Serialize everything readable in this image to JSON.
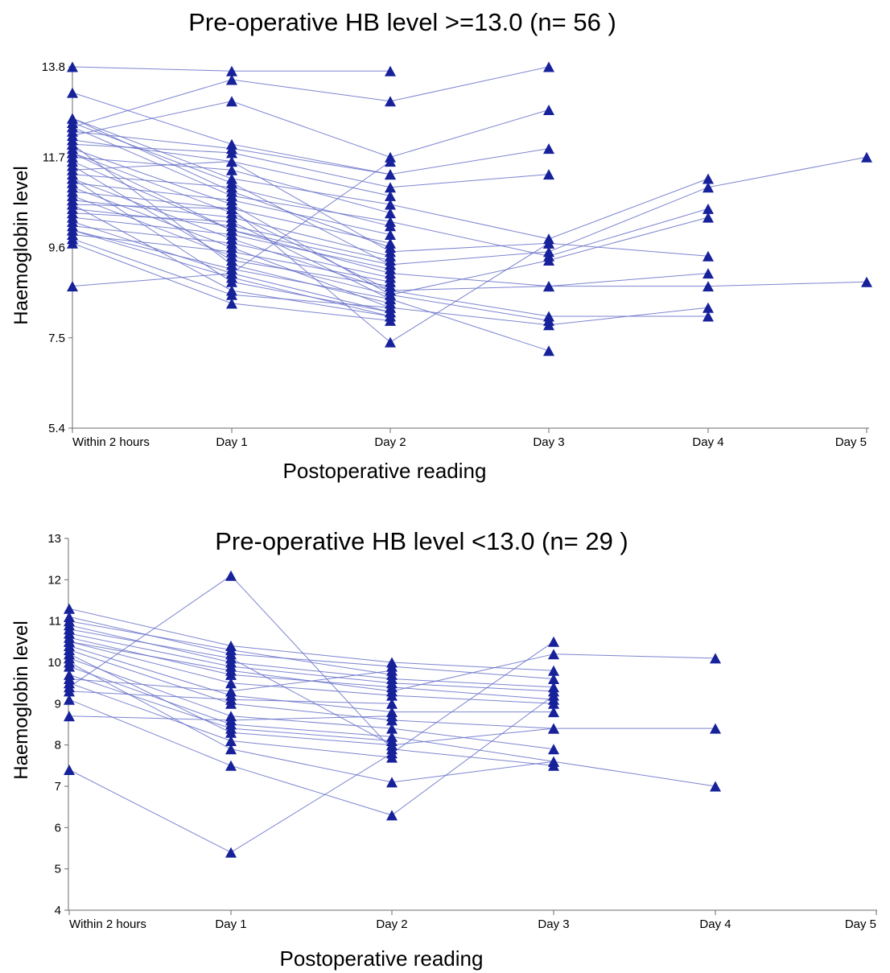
{
  "chart_data": [
    {
      "type": "line",
      "title": "Pre-operative HB level >=13.0 (n= 56 )",
      "xlabel": "Postoperative reading",
      "ylabel": "Haemoglobin level",
      "categories": [
        "Within 2 hours",
        "Day 1",
        "Day 2",
        "Day 3",
        "Day 4",
        "Day 5"
      ],
      "yticks": [
        "5.4",
        "7.5",
        "9.6",
        "11.7",
        "13.8"
      ],
      "ylim": [
        5.4,
        13.8
      ],
      "grid": false,
      "marker": "triangle",
      "colors": {
        "line": "#6670c8",
        "marker": "#16219a"
      },
      "series": [
        {
          "values": [
            13.8,
            13.7,
            13.7,
            null,
            null,
            null
          ]
        },
        {
          "values": [
            12.4,
            13.5,
            13.0,
            13.8,
            null,
            null
          ]
        },
        {
          "values": [
            12.2,
            13.0,
            11.7,
            12.8,
            null,
            null
          ]
        },
        {
          "values": [
            13.2,
            12.0,
            11.3,
            11.9,
            null,
            null
          ]
        },
        {
          "values": [
            12.0,
            11.8,
            11.0,
            11.3,
            null,
            null
          ]
        },
        {
          "values": [
            12.6,
            11.2,
            10.6,
            9.8,
            11.2,
            null
          ]
        },
        {
          "values": [
            12.5,
            11.1,
            9.2,
            9.5,
            11.0,
            11.7
          ]
        },
        {
          "values": [
            12.4,
            10.8,
            10.2,
            9.4,
            10.5,
            null
          ]
        },
        {
          "values": [
            11.9,
            10.6,
            8.5,
            9.3,
            10.3,
            null
          ]
        },
        {
          "values": [
            11.8,
            10.4,
            8.6,
            8.7,
            9.0,
            null
          ]
        },
        {
          "values": [
            11.6,
            10.0,
            9.0,
            8.7,
            8.7,
            8.8
          ]
        },
        {
          "values": [
            11.4,
            11.6,
            9.5,
            9.7,
            9.4,
            null
          ]
        },
        {
          "values": [
            11.2,
            9.8,
            8.6,
            8.0,
            8.0,
            null
          ]
        },
        {
          "values": [
            11.0,
            9.6,
            8.2,
            7.8,
            8.2,
            null
          ]
        },
        {
          "values": [
            10.8,
            9.4,
            8.5,
            7.9,
            null,
            null
          ]
        },
        {
          "values": [
            10.6,
            10.5,
            7.4,
            9.7,
            null,
            null
          ]
        },
        {
          "values": [
            10.4,
            10.2,
            8.4,
            7.2,
            null,
            null
          ]
        },
        {
          "values": [
            10.2,
            9.0,
            8.1,
            null,
            null,
            null
          ]
        },
        {
          "values": [
            10.0,
            8.9,
            8.0,
            null,
            null,
            null
          ]
        },
        {
          "values": [
            9.8,
            8.5,
            8.2,
            null,
            null,
            null
          ]
        },
        {
          "values": [
            9.7,
            8.3,
            7.9,
            null,
            null,
            null
          ]
        },
        {
          "values": [
            8.7,
            9.0,
            11.6,
            null,
            null,
            null
          ]
        },
        {
          "values": [
            12.3,
            11.9,
            11.3,
            null,
            null,
            null
          ]
        },
        {
          "values": [
            12.1,
            11.6,
            10.8,
            null,
            null,
            null
          ]
        },
        {
          "values": [
            11.7,
            11.4,
            10.4,
            null,
            null,
            null
          ]
        },
        {
          "values": [
            11.3,
            11.0,
            10.1,
            null,
            null,
            null
          ]
        },
        {
          "values": [
            11.1,
            10.7,
            9.9,
            null,
            null,
            null
          ]
        },
        {
          "values": [
            10.9,
            10.5,
            9.7,
            null,
            null,
            null
          ]
        },
        {
          "values": [
            10.7,
            10.3,
            9.4,
            null,
            null,
            null
          ]
        },
        {
          "values": [
            10.5,
            10.1,
            9.3,
            null,
            null,
            null
          ]
        },
        {
          "values": [
            10.3,
            9.9,
            9.1,
            null,
            null,
            null
          ]
        },
        {
          "values": [
            10.1,
            9.7,
            8.9,
            null,
            null,
            null
          ]
        },
        {
          "values": [
            9.9,
            9.5,
            8.8,
            null,
            null,
            null
          ]
        },
        {
          "values": [
            11.5,
            9.3,
            8.7,
            null,
            null,
            null
          ]
        },
        {
          "values": [
            12.0,
            9.2,
            8.3,
            null,
            null,
            null
          ]
        },
        {
          "values": [
            11.2,
            8.8,
            8.1,
            null,
            null,
            null
          ]
        },
        {
          "values": [
            10.6,
            8.6,
            8.0,
            null,
            null,
            null
          ]
        },
        {
          "values": [
            12.6,
            10.9,
            9.6,
            null,
            null,
            null
          ]
        },
        {
          "values": [
            10.0,
            9.1,
            8.4,
            null,
            null,
            null
          ]
        },
        {
          "values": [
            11.8,
            10.0,
            9.2,
            null,
            null,
            null
          ]
        }
      ]
    },
    {
      "type": "line",
      "title": "Pre-operative HB level <13.0 (n= 29 )",
      "xlabel": "Postoperative reading",
      "ylabel": "Haemoglobin level",
      "categories": [
        "Within 2 hours",
        "Day 1",
        "Day 2",
        "Day 3",
        "Day 4",
        "Day 5"
      ],
      "yticks": [
        "4",
        "5",
        "6",
        "7",
        "8",
        "9",
        "10",
        "11",
        "12",
        "13"
      ],
      "ylim": [
        4,
        13
      ],
      "grid": false,
      "marker": "triangle",
      "colors": {
        "line": "#6670c8",
        "marker": "#16219a"
      },
      "series": [
        {
          "values": [
            9.4,
            12.1,
            7.9,
            7.5,
            null,
            null
          ]
        },
        {
          "values": [
            7.4,
            5.4,
            7.8,
            10.5,
            null,
            null
          ]
        },
        {
          "values": [
            10.5,
            9.8,
            9.3,
            10.2,
            10.1,
            null
          ]
        },
        {
          "values": [
            10.2,
            8.3,
            8.0,
            8.4,
            8.4,
            null
          ]
        },
        {
          "values": [
            9.1,
            7.5,
            6.3,
            9.2,
            null,
            null
          ]
        },
        {
          "values": [
            10.0,
            7.9,
            7.1,
            7.6,
            7.0,
            null
          ]
        },
        {
          "values": [
            11.3,
            10.4,
            10.0,
            9.8,
            null,
            null
          ]
        },
        {
          "values": [
            11.1,
            10.2,
            9.9,
            9.6,
            null,
            null
          ]
        },
        {
          "values": [
            10.9,
            10.0,
            9.6,
            9.4,
            null,
            null
          ]
        },
        {
          "values": [
            10.7,
            9.9,
            9.5,
            9.3,
            null,
            null
          ]
        },
        {
          "values": [
            10.6,
            9.7,
            9.4,
            9.1,
            null,
            null
          ]
        },
        {
          "values": [
            10.5,
            9.5,
            9.2,
            9.0,
            null,
            null
          ]
        },
        {
          "values": [
            10.4,
            9.2,
            8.8,
            8.8,
            null,
            null
          ]
        },
        {
          "values": [
            10.3,
            9.0,
            8.6,
            8.4,
            null,
            null
          ]
        },
        {
          "values": [
            10.1,
            8.7,
            8.4,
            7.9,
            null,
            null
          ]
        },
        {
          "values": [
            9.9,
            8.5,
            8.2,
            7.6,
            null,
            null
          ]
        },
        {
          "values": [
            9.7,
            8.4,
            8.1,
            null,
            null,
            null
          ]
        },
        {
          "values": [
            9.5,
            8.1,
            7.7,
            null,
            null,
            null
          ]
        },
        {
          "values": [
            9.3,
            9.1,
            9.0,
            null,
            null,
            null
          ]
        },
        {
          "values": [
            8.7,
            8.6,
            8.7,
            null,
            null,
            null
          ]
        },
        {
          "values": [
            9.6,
            9.3,
            9.8,
            null,
            null,
            null
          ]
        },
        {
          "values": [
            10.8,
            10.1,
            8.0,
            null,
            null,
            null
          ]
        },
        {
          "values": [
            11.0,
            10.3,
            9.7,
            null,
            null,
            null
          ]
        }
      ]
    }
  ]
}
